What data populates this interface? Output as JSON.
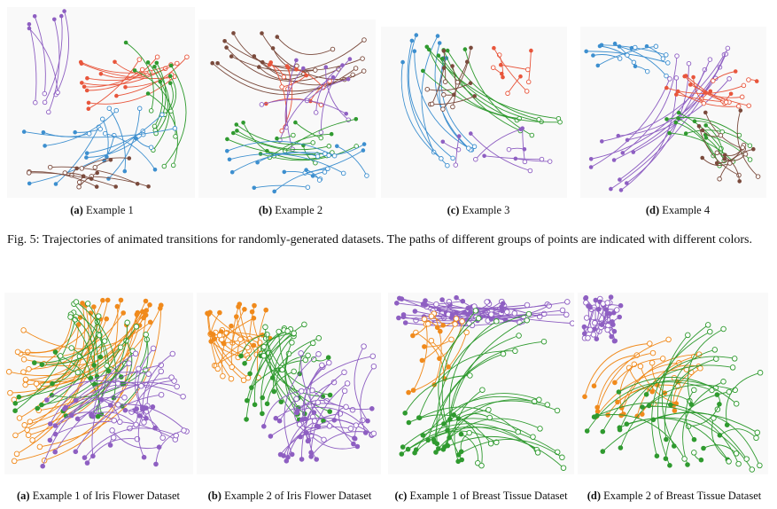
{
  "figure5": {
    "subfigures": [
      {
        "letter": "(a)",
        "caption": "Example 1"
      },
      {
        "letter": "(b)",
        "caption": "Example 2"
      },
      {
        "letter": "(c)",
        "caption": "Example 3"
      },
      {
        "letter": "(d)",
        "caption": "Example 4"
      }
    ],
    "caption": "Fig. 5: Trajectories of animated transitions for randomly-generated datasets. The paths of different groups of points are indicated with different colors."
  },
  "figure6": {
    "subfigures": [
      {
        "letter": "(a)",
        "caption": "Example 1 of Iris Flower Dataset"
      },
      {
        "letter": "(b)",
        "caption": "Example 2 of Iris Flower Dataset"
      },
      {
        "letter": "(c)",
        "caption": "Example 1 of Breast Tissue Dataset"
      },
      {
        "letter": "(d)",
        "caption": "Example 2 of Breast Tissue Dataset"
      }
    ]
  },
  "colors": {
    "blue": "#3d8fcf",
    "red": "#e8563c",
    "purple": "#8e5fc2",
    "green": "#2f9a2f",
    "brown": "#7a4a3c",
    "orange": "#f08a1c"
  }
}
